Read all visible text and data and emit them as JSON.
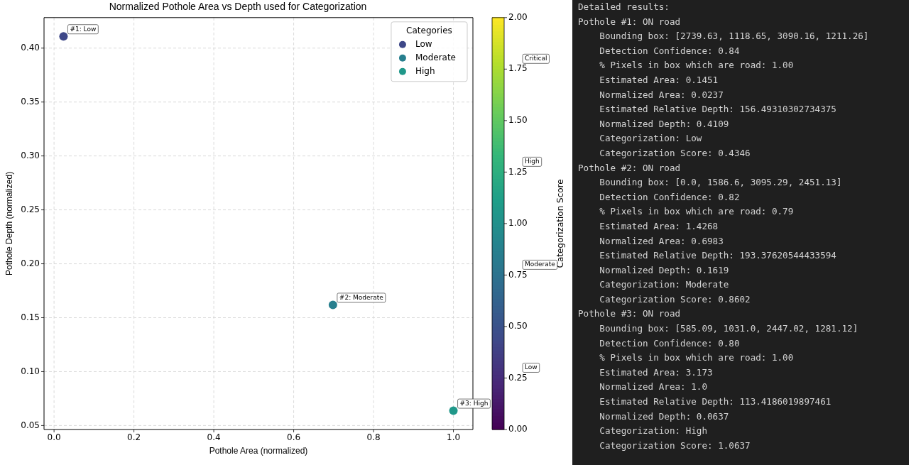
{
  "chart_data": [
    {
      "type": "scatter",
      "title": "Normalized Pothole Area vs Depth used for Categorization",
      "xlabel": "Pothole Area (normalized)",
      "ylabel": "Pothole Depth (normalized)",
      "clabel": "Categorization Score",
      "legend_title": "Categories",
      "x": [
        0.0237,
        0.6983,
        1.0
      ],
      "series": [
        {
          "name": "Low",
          "color": "#3e4888",
          "values": [
            0.4109,
            null,
            null
          ],
          "cvalues": [
            0.4346,
            null,
            null
          ]
        },
        {
          "name": "Moderate",
          "color": "#277f8e",
          "values": [
            null,
            0.1619,
            null
          ],
          "cvalues": [
            null,
            0.8602,
            null
          ]
        },
        {
          "name": "High",
          "color": "#20988a",
          "values": [
            null,
            null,
            0.0637
          ],
          "cvalues": [
            null,
            null,
            1.0637
          ]
        }
      ],
      "xlim": [
        -0.0251,
        1.0488
      ],
      "xticks": [
        {
          "value": 0,
          "label": "0.0"
        },
        {
          "value": 0.2,
          "label": "0.2"
        },
        {
          "value": 0.4,
          "label": "0.4"
        },
        {
          "value": 0.6,
          "label": "0.6"
        },
        {
          "value": 0.8,
          "label": "0.8"
        },
        {
          "value": 1,
          "label": "1.0"
        }
      ],
      "ylim": [
        0.0463,
        0.4283
      ],
      "yticks": [
        {
          "value": 0.05,
          "label": "0.05"
        },
        {
          "value": 0.1,
          "label": "0.10"
        },
        {
          "value": 0.15,
          "label": "0.15"
        },
        {
          "value": 0.2,
          "label": "0.20"
        },
        {
          "value": 0.25,
          "label": "0.25"
        },
        {
          "value": 0.3,
          "label": "0.30"
        },
        {
          "value": 0.35,
          "label": "0.35"
        },
        {
          "value": 0.4,
          "label": "0.40"
        }
      ],
      "clim": [
        0,
        2
      ],
      "cticks": [
        {
          "value": 0,
          "label": "0.00"
        },
        {
          "value": 0.25,
          "label": "0.25"
        },
        {
          "value": 0.5,
          "label": "0.50"
        },
        {
          "value": 0.75,
          "label": "0.75"
        },
        {
          "value": 1,
          "label": "1.00"
        },
        {
          "value": 1.25,
          "label": "1.25"
        },
        {
          "value": 1.5,
          "label": "1.50"
        },
        {
          "value": 1.75,
          "label": "1.75"
        },
        {
          "value": 2,
          "label": "2.00"
        }
      ],
      "annotations": [
        {
          "text": "#1: Low",
          "x": 0.0237,
          "y": 0.4109
        },
        {
          "text": "#2: Moderate",
          "x": 0.6983,
          "y": 0.1619
        },
        {
          "text": "#3: High",
          "x": 1.0,
          "y": 0.0637
        },
        "Low",
        "Moderate",
        "High",
        "Critical"
      ],
      "grid": true,
      "legend": "top right",
      "marker": "circle"
    },
    {
      "type": "other",
      "title": "Detailed results:",
      "annotations": [
        "Pothole #1: ON road",
        "    Bounding box: [2739.63, 1118.65, 3090.16, 1211.26]",
        "    Detection Confidence: 0.84",
        "    % Pixels in box which are road: 1.00",
        "    Estimated Area: 0.1451",
        "    Normalized Area: 0.0237",
        "    Estimated Relative Depth: 156.49310302734375",
        "    Normalized Depth: 0.4109",
        "    Categorization: Low",
        "    Categorization Score: 0.4346",
        "Pothole #2: ON road",
        "    Bounding box: [0.0, 1586.6, 3095.29, 2451.13]",
        "    Detection Confidence: 0.82",
        "    % Pixels in box which are road: 0.79",
        "    Estimated Area: 1.4268",
        "    Normalized Area: 0.6983",
        "    Estimated Relative Depth: 193.37620544433594",
        "    Normalized Depth: 0.1619",
        "    Categorization: Moderate",
        "    Categorization Score: 0.8602",
        "Pothole #3: ON road",
        "    Bounding box: [585.09, 1031.0, 2447.02, 1281.12]",
        "    Detection Confidence: 0.80",
        "    % Pixels in box which are road: 1.00",
        "    Estimated Area: 3.173",
        "    Normalized Area: 1.0",
        "    Estimated Relative Depth: 113.4186019897461",
        "    Normalized Depth: 0.0637",
        "    Categorization: High",
        "    Categorization Score: 1.0637"
      ]
    }
  ]
}
